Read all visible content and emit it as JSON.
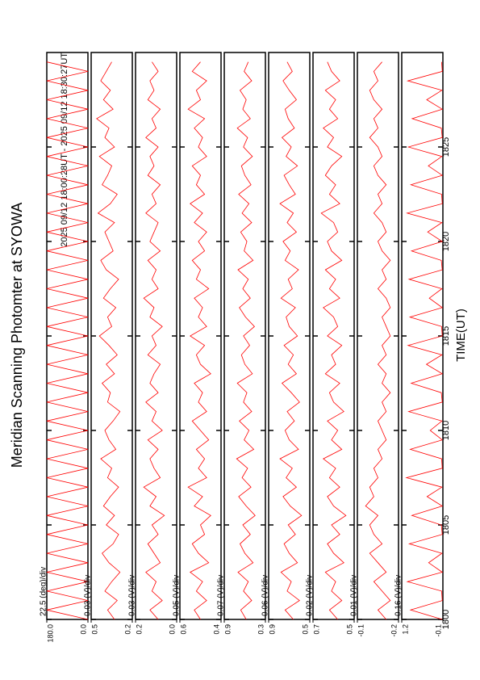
{
  "chart_data": {
    "type": "line",
    "title": "Meridian Scanning Photomter at SYOWA",
    "subtitle": "2025 09/12 18:00:28UT - 2025 09/12 18:30:27UT",
    "xlabel": "TIME(UT)",
    "xlim": [
      1800,
      1830
    ],
    "xticks": [
      1800,
      1805,
      1810,
      1815,
      1820,
      1825
    ],
    "x": [
      1800,
      1800.5,
      1801,
      1801.5,
      1802,
      1802.5,
      1803,
      1803.5,
      1804,
      1804.5,
      1805,
      1805.5,
      1806,
      1806.5,
      1807,
      1807.5,
      1808,
      1808.5,
      1809,
      1809.5,
      1810,
      1810.5,
      1811,
      1811.5,
      1812,
      1812.5,
      1813,
      1813.5,
      1814,
      1814.5,
      1815,
      1815.5,
      1816,
      1816.5,
      1817,
      1817.5,
      1818,
      1818.5,
      1819,
      1819.5,
      1820,
      1820.5,
      1821,
      1821.5,
      1822,
      1822.5,
      1823,
      1823.5,
      1824,
      1824.5,
      1825,
      1825.5,
      1826,
      1826.5,
      1827,
      1827.5,
      1828,
      1828.5,
      1829,
      1829.5
    ],
    "panels": [
      {
        "label": "22.5 (deg)/div",
        "color": "#ff0000",
        "ylim": [
          0,
          180
        ],
        "yticks": [
          {
            "value": 0,
            "label": "0.0"
          },
          {
            "value": 180,
            "label": "180.0"
          }
        ],
        "values": [
          0,
          180,
          0,
          180,
          0,
          180,
          0,
          180,
          0,
          180,
          0,
          180,
          0,
          180,
          0,
          180,
          0,
          180,
          0,
          180,
          0,
          180,
          0,
          180,
          0,
          180,
          0,
          180,
          0,
          180,
          0,
          180,
          0,
          180,
          0,
          180,
          0,
          180,
          0,
          180,
          0,
          180,
          0,
          180,
          0,
          180,
          0,
          180,
          0,
          180,
          0,
          180,
          0,
          180,
          0,
          180,
          0,
          180,
          0,
          180
        ]
      },
      {
        "label": "0.03 (V)/div",
        "color": "#ff0000",
        "ylim": [
          0.2,
          0.5
        ],
        "yticks": [
          0.2,
          0.5
        ],
        "values": [
          0.33,
          0.38,
          0.31,
          0.4,
          0.35,
          0.29,
          0.37,
          0.42,
          0.34,
          0.3,
          0.39,
          0.33,
          0.41,
          0.36,
          0.3,
          0.38,
          0.35,
          0.43,
          0.32,
          0.37,
          0.4,
          0.34,
          0.29,
          0.38,
          0.36,
          0.42,
          0.33,
          0.39,
          0.31,
          0.37,
          0.44,
          0.35,
          0.38,
          0.32,
          0.41,
          0.36,
          0.3,
          0.39,
          0.43,
          0.34,
          0.37,
          0.4,
          0.33,
          0.45,
          0.36,
          0.31,
          0.42,
          0.38,
          0.35,
          0.44,
          0.33,
          0.4,
          0.37,
          0.46,
          0.34,
          0.41,
          0.36,
          0.43,
          0.39,
          0.35
        ]
      },
      {
        "label": "0.03 (V)/div",
        "color": "#ff0000",
        "ylim": [
          0,
          0.2
        ],
        "yticks": [
          {
            "value": 0,
            "label": "0.0"
          },
          0.2
        ],
        "values": [
          0.09,
          0.13,
          0.07,
          0.12,
          0.1,
          0.15,
          0.08,
          0.11,
          0.14,
          0.09,
          0.12,
          0.06,
          0.13,
          0.1,
          0.16,
          0.08,
          0.11,
          0.13,
          0.09,
          0.14,
          0.07,
          0.12,
          0.1,
          0.15,
          0.09,
          0.13,
          0.11,
          0.08,
          0.14,
          0.1,
          0.12,
          0.07,
          0.13,
          0.11,
          0.16,
          0.09,
          0.12,
          0.1,
          0.14,
          0.08,
          0.13,
          0.11,
          0.09,
          0.15,
          0.1,
          0.12,
          0.08,
          0.14,
          0.11,
          0.13,
          0.09,
          0.15,
          0.1,
          0.12,
          0.08,
          0.14,
          0.11,
          0.13,
          0.09,
          0.12
        ]
      },
      {
        "label": "0.05 (V)/div",
        "color": "#ff0000",
        "ylim": [
          0.4,
          0.6
        ],
        "yticks": [
          0.4,
          0.6
        ],
        "values": [
          0.5,
          0.53,
          0.47,
          0.52,
          0.49,
          0.55,
          0.46,
          0.51,
          0.54,
          0.48,
          0.5,
          0.45,
          0.53,
          0.49,
          0.56,
          0.47,
          0.51,
          0.48,
          0.52,
          0.46,
          0.5,
          0.54,
          0.47,
          0.51,
          0.49,
          0.53,
          0.45,
          0.5,
          0.52,
          0.48,
          0.55,
          0.47,
          0.51,
          0.49,
          0.53,
          0.46,
          0.52,
          0.5,
          0.54,
          0.48,
          0.51,
          0.47,
          0.53,
          0.49,
          0.55,
          0.48,
          0.52,
          0.5,
          0.54,
          0.47,
          0.51,
          0.49,
          0.53,
          0.48,
          0.56,
          0.5,
          0.52,
          0.47,
          0.54,
          0.5
        ]
      },
      {
        "label": "0.07 (V)/div",
        "color": "#ff0000",
        "ylim": [
          0.3,
          0.9
        ],
        "yticks": [
          0.3,
          0.9
        ],
        "values": [
          0.58,
          0.66,
          0.5,
          0.62,
          0.55,
          0.7,
          0.48,
          0.6,
          0.67,
          0.52,
          0.63,
          0.45,
          0.58,
          0.69,
          0.51,
          0.64,
          0.56,
          0.72,
          0.47,
          0.61,
          0.54,
          0.68,
          0.5,
          0.62,
          0.57,
          0.71,
          0.49,
          0.6,
          0.65,
          0.53,
          0.62,
          0.46,
          0.59,
          0.68,
          0.52,
          0.63,
          0.55,
          0.7,
          0.48,
          0.61,
          0.57,
          0.66,
          0.5,
          0.64,
          0.54,
          0.69,
          0.51,
          0.6,
          0.65,
          0.49,
          0.62,
          0.56,
          0.71,
          0.52,
          0.63,
          0.58,
          0.67,
          0.5,
          0.61,
          0.55
        ]
      },
      {
        "label": "0.06 (V)/div",
        "color": "#ff0000",
        "ylim": [
          0.5,
          0.9
        ],
        "yticks": [
          0.5,
          0.9
        ],
        "values": [
          0.66,
          0.74,
          0.6,
          0.72,
          0.68,
          0.78,
          0.62,
          0.7,
          0.75,
          0.64,
          0.71,
          0.58,
          0.69,
          0.76,
          0.63,
          0.73,
          0.67,
          0.79,
          0.61,
          0.7,
          0.74,
          0.65,
          0.72,
          0.6,
          0.68,
          0.77,
          0.63,
          0.71,
          0.66,
          0.75,
          0.62,
          0.7,
          0.73,
          0.64,
          0.78,
          0.67,
          0.71,
          0.61,
          0.74,
          0.69,
          0.76,
          0.63,
          0.72,
          0.66,
          0.79,
          0.64,
          0.7,
          0.75,
          0.62,
          0.73,
          0.68,
          0.77,
          0.65,
          0.71,
          0.74,
          0.63,
          0.7,
          0.76,
          0.67,
          0.72
        ]
      },
      {
        "label": "0.02 (V)/div",
        "color": "#ff0000",
        "ylim": [
          0.5,
          0.7
        ],
        "yticks": [
          0.5,
          0.7
        ],
        "values": [
          0.58,
          0.62,
          0.56,
          0.61,
          0.59,
          0.64,
          0.55,
          0.6,
          0.63,
          0.57,
          0.61,
          0.54,
          0.6,
          0.63,
          0.57,
          0.62,
          0.59,
          0.65,
          0.56,
          0.61,
          0.58,
          0.63,
          0.55,
          0.6,
          0.62,
          0.57,
          0.64,
          0.59,
          0.61,
          0.56,
          0.63,
          0.58,
          0.6,
          0.65,
          0.57,
          0.62,
          0.59,
          0.64,
          0.56,
          0.61,
          0.63,
          0.58,
          0.6,
          0.66,
          0.57,
          0.62,
          0.59,
          0.64,
          0.61,
          0.56,
          0.63,
          0.6,
          0.65,
          0.58,
          0.62,
          0.59,
          0.64,
          0.57,
          0.61,
          0.63
        ]
      },
      {
        "label": "0.01 (V)/div",
        "color": "#ff0000",
        "ylim": [
          -0.2,
          -0.1
        ],
        "yticks": [
          -0.2,
          -0.1
        ],
        "values": [
          -0.17,
          -0.15,
          -0.18,
          -0.16,
          -0.14,
          -0.17,
          -0.15,
          -0.13,
          -0.16,
          -0.14,
          -0.13,
          -0.15,
          -0.12,
          -0.14,
          -0.13,
          -0.15,
          -0.14,
          -0.16,
          -0.15,
          -0.17,
          -0.16,
          -0.15,
          -0.17,
          -0.16,
          -0.18,
          -0.16,
          -0.17,
          -0.15,
          -0.17,
          -0.16,
          -0.18,
          -0.17,
          -0.16,
          -0.18,
          -0.17,
          -0.15,
          -0.17,
          -0.16,
          -0.18,
          -0.16,
          -0.15,
          -0.17,
          -0.16,
          -0.14,
          -0.16,
          -0.15,
          -0.17,
          -0.15,
          -0.14,
          -0.16,
          -0.15,
          -0.13,
          -0.15,
          -0.14,
          -0.16,
          -0.14,
          -0.13,
          -0.15,
          -0.14,
          -0.16
        ]
      },
      {
        "label": "0.16 (V)/div",
        "color": "#ff0000",
        "ylim": [
          -0.1,
          1.2
        ],
        "yticks": [
          -0.1,
          1.2
        ],
        "values": [
          -0.08,
          0.92,
          -0.08,
          -0.06,
          1.02,
          -0.08,
          0.35,
          -0.07,
          0.96,
          -0.08,
          -0.05,
          0.88,
          -0.08,
          0.4,
          -0.07,
          1.05,
          -0.08,
          -0.06,
          0.93,
          -0.08,
          0.3,
          -0.07,
          0.98,
          -0.08,
          -0.05,
          0.9,
          -0.08,
          0.42,
          -0.07,
          1.0,
          -0.08,
          -0.06,
          0.94,
          -0.08,
          0.33,
          -0.07,
          0.97,
          -0.08,
          -0.05,
          0.89,
          -0.08,
          0.38,
          -0.07,
          1.03,
          -0.08,
          -0.06,
          0.91,
          -0.08,
          0.36,
          -0.07,
          0.99,
          -0.08,
          -0.05,
          0.87,
          -0.08,
          0.41,
          -0.07,
          1.01,
          -0.08,
          -0.06
        ]
      }
    ]
  }
}
